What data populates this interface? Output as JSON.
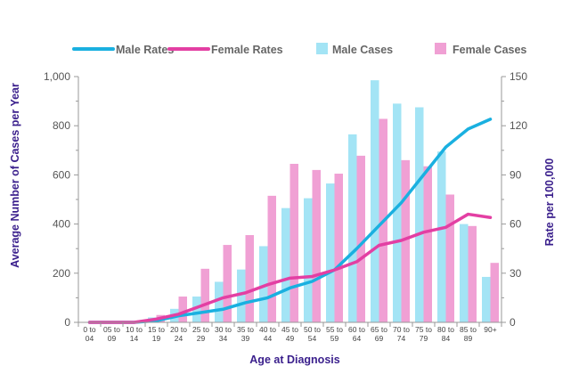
{
  "chart_data": {
    "type": "bar",
    "xlabel": "Age at Diagnosis",
    "ylabel": "Average Number of Cases per Year",
    "y2label": "Rate per 100,000",
    "ylim": [
      0,
      1000
    ],
    "y2lim": [
      0,
      150
    ],
    "yticks": [
      "0",
      "200",
      "400",
      "600",
      "800",
      "1,000"
    ],
    "y2ticks": [
      "0",
      "30",
      "60",
      "90",
      "120",
      "150"
    ],
    "grid": false,
    "legend_position": "top",
    "categories": [
      [
        "0 to",
        "04"
      ],
      [
        "05 to",
        "09"
      ],
      [
        "10 to",
        "14"
      ],
      [
        "15 to",
        "19"
      ],
      [
        "20 to",
        "24"
      ],
      [
        "25 to",
        "29"
      ],
      [
        "30 to",
        "34"
      ],
      [
        "35 to",
        "39"
      ],
      [
        "40 to",
        "44"
      ],
      [
        "45 to",
        "49"
      ],
      [
        "50 to",
        "54"
      ],
      [
        "55 to",
        "59"
      ],
      [
        "60 to",
        "64"
      ],
      [
        "65 to",
        "69"
      ],
      [
        "70 to",
        "74"
      ],
      [
        "75 to",
        "79"
      ],
      [
        "80 to",
        "84"
      ],
      [
        "85 to",
        "89"
      ],
      [
        "90+",
        ""
      ]
    ],
    "series": [
      {
        "name": "Male Rates",
        "kind": "line",
        "axis": "right",
        "color": "#1ab0e0",
        "values": [
          0,
          0,
          0,
          1,
          4,
          6,
          8,
          12,
          15,
          21,
          25,
          32,
          45,
          59,
          73,
          90,
          107,
          118,
          124
        ]
      },
      {
        "name": "Female Rates",
        "kind": "line",
        "axis": "right",
        "color": "#e33fa3",
        "values": [
          0,
          0,
          0,
          2,
          5,
          10,
          15,
          18,
          23,
          27,
          28,
          32,
          37,
          47,
          50,
          55,
          58,
          66,
          64
        ]
      },
      {
        "name": "Male Cases",
        "kind": "bar",
        "axis": "left",
        "color": "#a3e4f5",
        "values": [
          0,
          0,
          2,
          20,
          55,
          105,
          165,
          215,
          310,
          465,
          505,
          565,
          765,
          985,
          890,
          875,
          695,
          400,
          185
        ]
      },
      {
        "name": "Female Cases",
        "kind": "bar",
        "axis": "left",
        "color": "#f0a0d4",
        "values": [
          0,
          0,
          3,
          30,
          105,
          218,
          315,
          355,
          515,
          645,
          620,
          605,
          678,
          828,
          660,
          635,
          520,
          392,
          242
        ]
      }
    ]
  }
}
